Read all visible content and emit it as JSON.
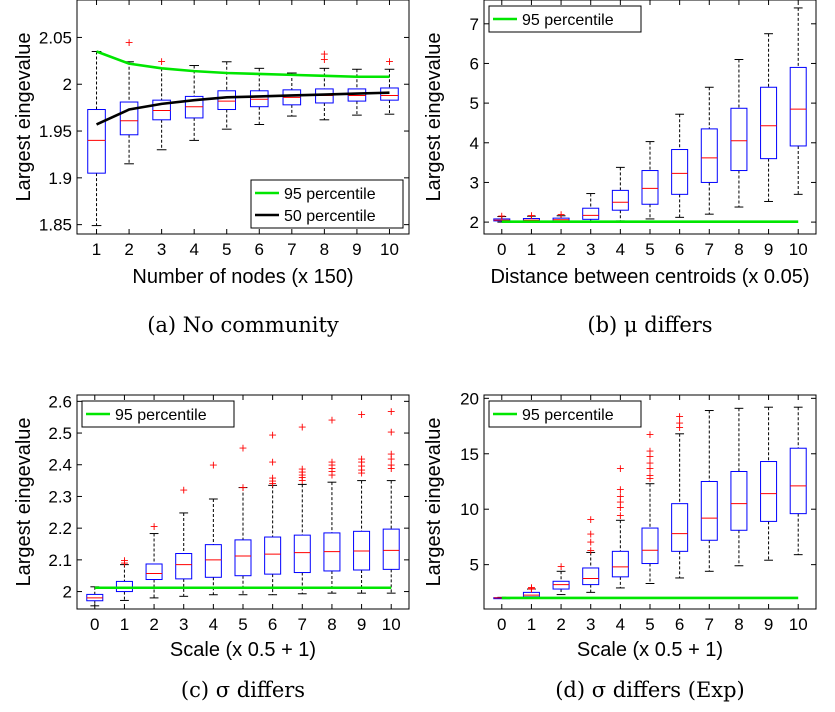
{
  "chart_data": [
    {
      "type": "box",
      "caption": "(a)  No community",
      "xlabel": "Number of nodes (x 150)",
      "ylabel": "Largest eingevalue",
      "categories": [
        "1",
        "2",
        "3",
        "4",
        "5",
        "6",
        "7",
        "8",
        "9",
        "10"
      ],
      "xlim": [
        0.4,
        10.6
      ],
      "ylim": [
        1.84,
        2.09
      ],
      "yticks": [
        1.85,
        1.9,
        1.95,
        2,
        2.05
      ],
      "ytick_labels": [
        "1.85",
        "1.9",
        "1.95",
        "2",
        "2.05"
      ],
      "legend_position": "bottom-right",
      "boxes": [
        {
          "x": 1,
          "whislo": 1.849,
          "q1": 1.905,
          "med": 1.94,
          "q3": 1.973,
          "whishi": 2.035,
          "fliers": []
        },
        {
          "x": 2,
          "whislo": 1.915,
          "q1": 1.946,
          "med": 1.961,
          "q3": 1.981,
          "whishi": 2.024,
          "fliers": [
            2.045
          ]
        },
        {
          "x": 3,
          "whislo": 1.93,
          "q1": 1.962,
          "med": 1.972,
          "q3": 1.983,
          "whishi": 2.017,
          "fliers": [
            2.025
          ]
        },
        {
          "x": 4,
          "whislo": 1.94,
          "q1": 1.964,
          "med": 1.976,
          "q3": 1.987,
          "whishi": 2.02,
          "fliers": []
        },
        {
          "x": 5,
          "whislo": 1.952,
          "q1": 1.973,
          "med": 1.982,
          "q3": 1.993,
          "whishi": 2.024,
          "fliers": []
        },
        {
          "x": 6,
          "whislo": 1.957,
          "q1": 1.976,
          "med": 1.984,
          "q3": 1.993,
          "whishi": 2.017,
          "fliers": []
        },
        {
          "x": 7,
          "whislo": 1.966,
          "q1": 1.978,
          "med": 1.986,
          "q3": 1.994,
          "whishi": 2.012,
          "fliers": []
        },
        {
          "x": 8,
          "whislo": 1.962,
          "q1": 1.98,
          "med": 1.988,
          "q3": 1.995,
          "whishi": 2.017,
          "fliers": [
            2.033,
            2.027
          ]
        },
        {
          "x": 9,
          "whislo": 1.967,
          "q1": 1.982,
          "med": 1.988,
          "q3": 1.995,
          "whishi": 2.016,
          "fliers": []
        },
        {
          "x": 10,
          "whislo": 1.968,
          "q1": 1.983,
          "med": 1.988,
          "q3": 1.996,
          "whishi": 2.016,
          "fliers": [
            2.025
          ]
        }
      ],
      "lines": [
        {
          "name": "95 percentile",
          "color": "#00e600",
          "x": [
            1,
            2,
            3,
            4,
            5,
            6,
            7,
            8,
            9,
            10
          ],
          "y": [
            2.035,
            2.022,
            2.017,
            2.014,
            2.012,
            2.011,
            2.01,
            2.009,
            2.008,
            2.008
          ]
        },
        {
          "name": "50 percentile",
          "color": "#000000",
          "x": [
            1,
            2,
            3,
            4,
            5,
            6,
            7,
            8,
            9,
            10
          ],
          "y": [
            1.957,
            1.973,
            1.979,
            1.983,
            1.986,
            1.987,
            1.988,
            1.989,
            1.99,
            1.991
          ]
        }
      ]
    },
    {
      "type": "box",
      "caption": "(b)  μ differs",
      "xlabel": "Distance between centroids (x 0.05)",
      "ylabel": "Largest eingevalue",
      "categories": [
        "0",
        "1",
        "2",
        "3",
        "4",
        "5",
        "6",
        "7",
        "8",
        "9",
        "10"
      ],
      "xlim": [
        -0.6,
        10.6
      ],
      "ylim": [
        1.7,
        7.6
      ],
      "yticks": [
        2,
        3,
        4,
        5,
        6,
        7
      ],
      "ytick_labels": [
        "2",
        "3",
        "4",
        "5",
        "6",
        "7"
      ],
      "legend_position": "top-left",
      "boxes": [
        {
          "x": 0,
          "whislo": 2.0,
          "q1": 2.03,
          "med": 2.05,
          "q3": 2.08,
          "whishi": 2.14,
          "fliers": [
            2.17
          ]
        },
        {
          "x": 1,
          "whislo": 2.0,
          "q1": 2.03,
          "med": 2.05,
          "q3": 2.09,
          "whishi": 2.15,
          "fliers": [
            2.18
          ]
        },
        {
          "x": 2,
          "whislo": 2.0,
          "q1": 2.03,
          "med": 2.06,
          "q3": 2.1,
          "whishi": 2.16,
          "fliers": [
            2.2
          ]
        },
        {
          "x": 3,
          "whislo": 2.0,
          "q1": 2.07,
          "med": 2.17,
          "q3": 2.35,
          "whishi": 2.72,
          "fliers": []
        },
        {
          "x": 4,
          "whislo": 2.03,
          "q1": 2.3,
          "med": 2.5,
          "q3": 2.8,
          "whishi": 3.38,
          "fliers": []
        },
        {
          "x": 5,
          "whislo": 2.08,
          "q1": 2.45,
          "med": 2.85,
          "q3": 3.3,
          "whishi": 4.03,
          "fliers": []
        },
        {
          "x": 6,
          "whislo": 2.12,
          "q1": 2.7,
          "med": 3.23,
          "q3": 3.83,
          "whishi": 4.72,
          "fliers": []
        },
        {
          "x": 7,
          "whislo": 2.2,
          "q1": 3.0,
          "med": 3.62,
          "q3": 4.35,
          "whishi": 5.4,
          "fliers": []
        },
        {
          "x": 8,
          "whislo": 2.38,
          "q1": 3.3,
          "med": 4.05,
          "q3": 4.87,
          "whishi": 6.1,
          "fliers": []
        },
        {
          "x": 9,
          "whislo": 2.52,
          "q1": 3.6,
          "med": 4.43,
          "q3": 5.4,
          "whishi": 6.75,
          "fliers": []
        },
        {
          "x": 10,
          "whislo": 2.7,
          "q1": 3.92,
          "med": 4.85,
          "q3": 5.9,
          "whishi": 7.4,
          "fliers": []
        }
      ],
      "lines": [
        {
          "name": "95 percentile",
          "color": "#00e600",
          "x": [
            0,
            10
          ],
          "y": [
            2.01,
            2.01
          ]
        }
      ]
    },
    {
      "type": "box",
      "caption": "(c)  σ differs",
      "xlabel": "Scale (x 0.5 + 1)",
      "ylabel": "Largest eingevalue",
      "categories": [
        "0",
        "1",
        "2",
        "3",
        "4",
        "5",
        "6",
        "7",
        "8",
        "9",
        "10"
      ],
      "xlim": [
        -0.6,
        10.6
      ],
      "ylim": [
        1.945,
        2.62
      ],
      "yticks": [
        2,
        2.1,
        2.2,
        2.3,
        2.4,
        2.5,
        2.6
      ],
      "ytick_labels": [
        "2",
        "2.1",
        "2.2",
        "2.3",
        "2.4",
        "2.5",
        "2.6"
      ],
      "legend_position": "top-left",
      "boxes": [
        {
          "x": 0,
          "whislo": 1.955,
          "q1": 1.971,
          "med": 1.98,
          "q3": 1.991,
          "whishi": 2.015,
          "fliers": []
        },
        {
          "x": 1,
          "whislo": 1.972,
          "q1": 2.0,
          "med": 2.01,
          "q3": 2.032,
          "whishi": 2.085,
          "fliers": [
            2.1,
            2.092
          ]
        },
        {
          "x": 2,
          "whislo": 1.98,
          "q1": 2.038,
          "med": 2.057,
          "q3": 2.087,
          "whishi": 2.183,
          "fliers": [
            2.207
          ]
        },
        {
          "x": 3,
          "whislo": 1.985,
          "q1": 2.04,
          "med": 2.085,
          "q3": 2.12,
          "whishi": 2.248,
          "fliers": [
            2.322
          ]
        },
        {
          "x": 4,
          "whislo": 1.99,
          "q1": 2.045,
          "med": 2.1,
          "q3": 2.148,
          "whishi": 2.292,
          "fliers": [
            2.4
          ]
        },
        {
          "x": 5,
          "whislo": 1.99,
          "q1": 2.05,
          "med": 2.112,
          "q3": 2.163,
          "whishi": 2.328,
          "fliers": [
            2.455,
            2.33
          ]
        },
        {
          "x": 6,
          "whislo": 1.99,
          "q1": 2.055,
          "med": 2.118,
          "q3": 2.172,
          "whishi": 2.335,
          "fliers": [
            2.495,
            2.41,
            2.36,
            2.35,
            2.342
          ]
        },
        {
          "x": 7,
          "whislo": 1.993,
          "q1": 2.06,
          "med": 2.123,
          "q3": 2.178,
          "whishi": 2.338,
          "fliers": [
            2.52,
            2.388,
            2.378,
            2.37,
            2.362,
            2.352
          ]
        },
        {
          "x": 8,
          "whislo": 1.995,
          "q1": 2.065,
          "med": 2.126,
          "q3": 2.185,
          "whishi": 2.345,
          "fliers": [
            2.542,
            2.41,
            2.4,
            2.39,
            2.38,
            2.37
          ]
        },
        {
          "x": 9,
          "whislo": 1.995,
          "q1": 2.068,
          "med": 2.128,
          "q3": 2.19,
          "whishi": 2.35,
          "fliers": [
            2.56,
            2.42,
            2.41,
            2.398,
            2.385,
            2.375
          ]
        },
        {
          "x": 10,
          "whislo": 1.995,
          "q1": 2.07,
          "med": 2.13,
          "q3": 2.197,
          "whishi": 2.35,
          "fliers": [
            2.57,
            2.505,
            2.435,
            2.42,
            2.4,
            2.39
          ]
        }
      ],
      "lines": [
        {
          "name": "95 percentile",
          "color": "#00e600",
          "x": [
            0,
            10
          ],
          "y": [
            2.012,
            2.012
          ]
        }
      ]
    },
    {
      "type": "box",
      "caption": "(d)  σ differs (Exp)",
      "xlabel": "Scale (x 0.5 + 1)",
      "ylabel": "Largest eingevalue",
      "categories": [
        "0",
        "1",
        "2",
        "3",
        "4",
        "5",
        "6",
        "7",
        "8",
        "9",
        "10"
      ],
      "xlim": [
        -0.6,
        10.6
      ],
      "ylim": [
        1.0,
        20.3
      ],
      "yticks": [
        5,
        10,
        15,
        20
      ],
      "ytick_labels": [
        "5",
        "10",
        "15",
        "20"
      ],
      "legend_position": "top-left",
      "boxes": [
        {
          "x": 0,
          "whislo": 1.95,
          "q1": 1.98,
          "med": 2.0,
          "q3": 2.02,
          "whishi": 2.05,
          "fliers": []
        },
        {
          "x": 1,
          "whislo": 1.95,
          "q1": 2.1,
          "med": 2.25,
          "q3": 2.5,
          "whishi": 2.8,
          "fliers": [
            3.0,
            2.9,
            2.85
          ]
        },
        {
          "x": 2,
          "whislo": 2.3,
          "q1": 2.8,
          "med": 3.2,
          "q3": 3.5,
          "whishi": 4.4,
          "fliers": [
            4.9
          ]
        },
        {
          "x": 3,
          "whislo": 2.5,
          "q1": 3.2,
          "med": 3.75,
          "q3": 4.7,
          "whishi": 6.1,
          "fliers": [
            9.1,
            7.8,
            7.1,
            6.3
          ]
        },
        {
          "x": 4,
          "whislo": 2.9,
          "q1": 3.9,
          "med": 4.8,
          "q3": 6.2,
          "whishi": 9.0,
          "fliers": [
            13.7,
            11.8,
            11.2,
            10.7,
            10.2,
            9.5
          ]
        },
        {
          "x": 5,
          "whislo": 3.3,
          "q1": 5.1,
          "med": 6.3,
          "q3": 8.3,
          "whishi": 12.3,
          "fliers": [
            16.8,
            15.3,
            14.8,
            14.2,
            13.7,
            13.1,
            12.8
          ]
        },
        {
          "x": 6,
          "whislo": 3.8,
          "q1": 6.2,
          "med": 7.8,
          "q3": 10.5,
          "whishi": 16.8,
          "fliers": [
            18.4,
            17.8,
            17.4
          ]
        },
        {
          "x": 7,
          "whislo": 4.4,
          "q1": 7.2,
          "med": 9.2,
          "q3": 12.5,
          "whishi": 18.9,
          "fliers": []
        },
        {
          "x": 8,
          "whislo": 4.9,
          "q1": 8.1,
          "med": 10.5,
          "q3": 13.4,
          "whishi": 19.1,
          "fliers": []
        },
        {
          "x": 9,
          "whislo": 5.4,
          "q1": 8.9,
          "med": 11.4,
          "q3": 14.3,
          "whishi": 19.2,
          "fliers": []
        },
        {
          "x": 10,
          "whislo": 5.9,
          "q1": 9.6,
          "med": 12.1,
          "q3": 15.5,
          "whishi": 19.2,
          "fliers": []
        }
      ],
      "lines": [
        {
          "name": "95 percentile",
          "color": "#00e600",
          "x": [
            0,
            10
          ],
          "y": [
            2.0,
            2.0
          ]
        }
      ]
    }
  ]
}
